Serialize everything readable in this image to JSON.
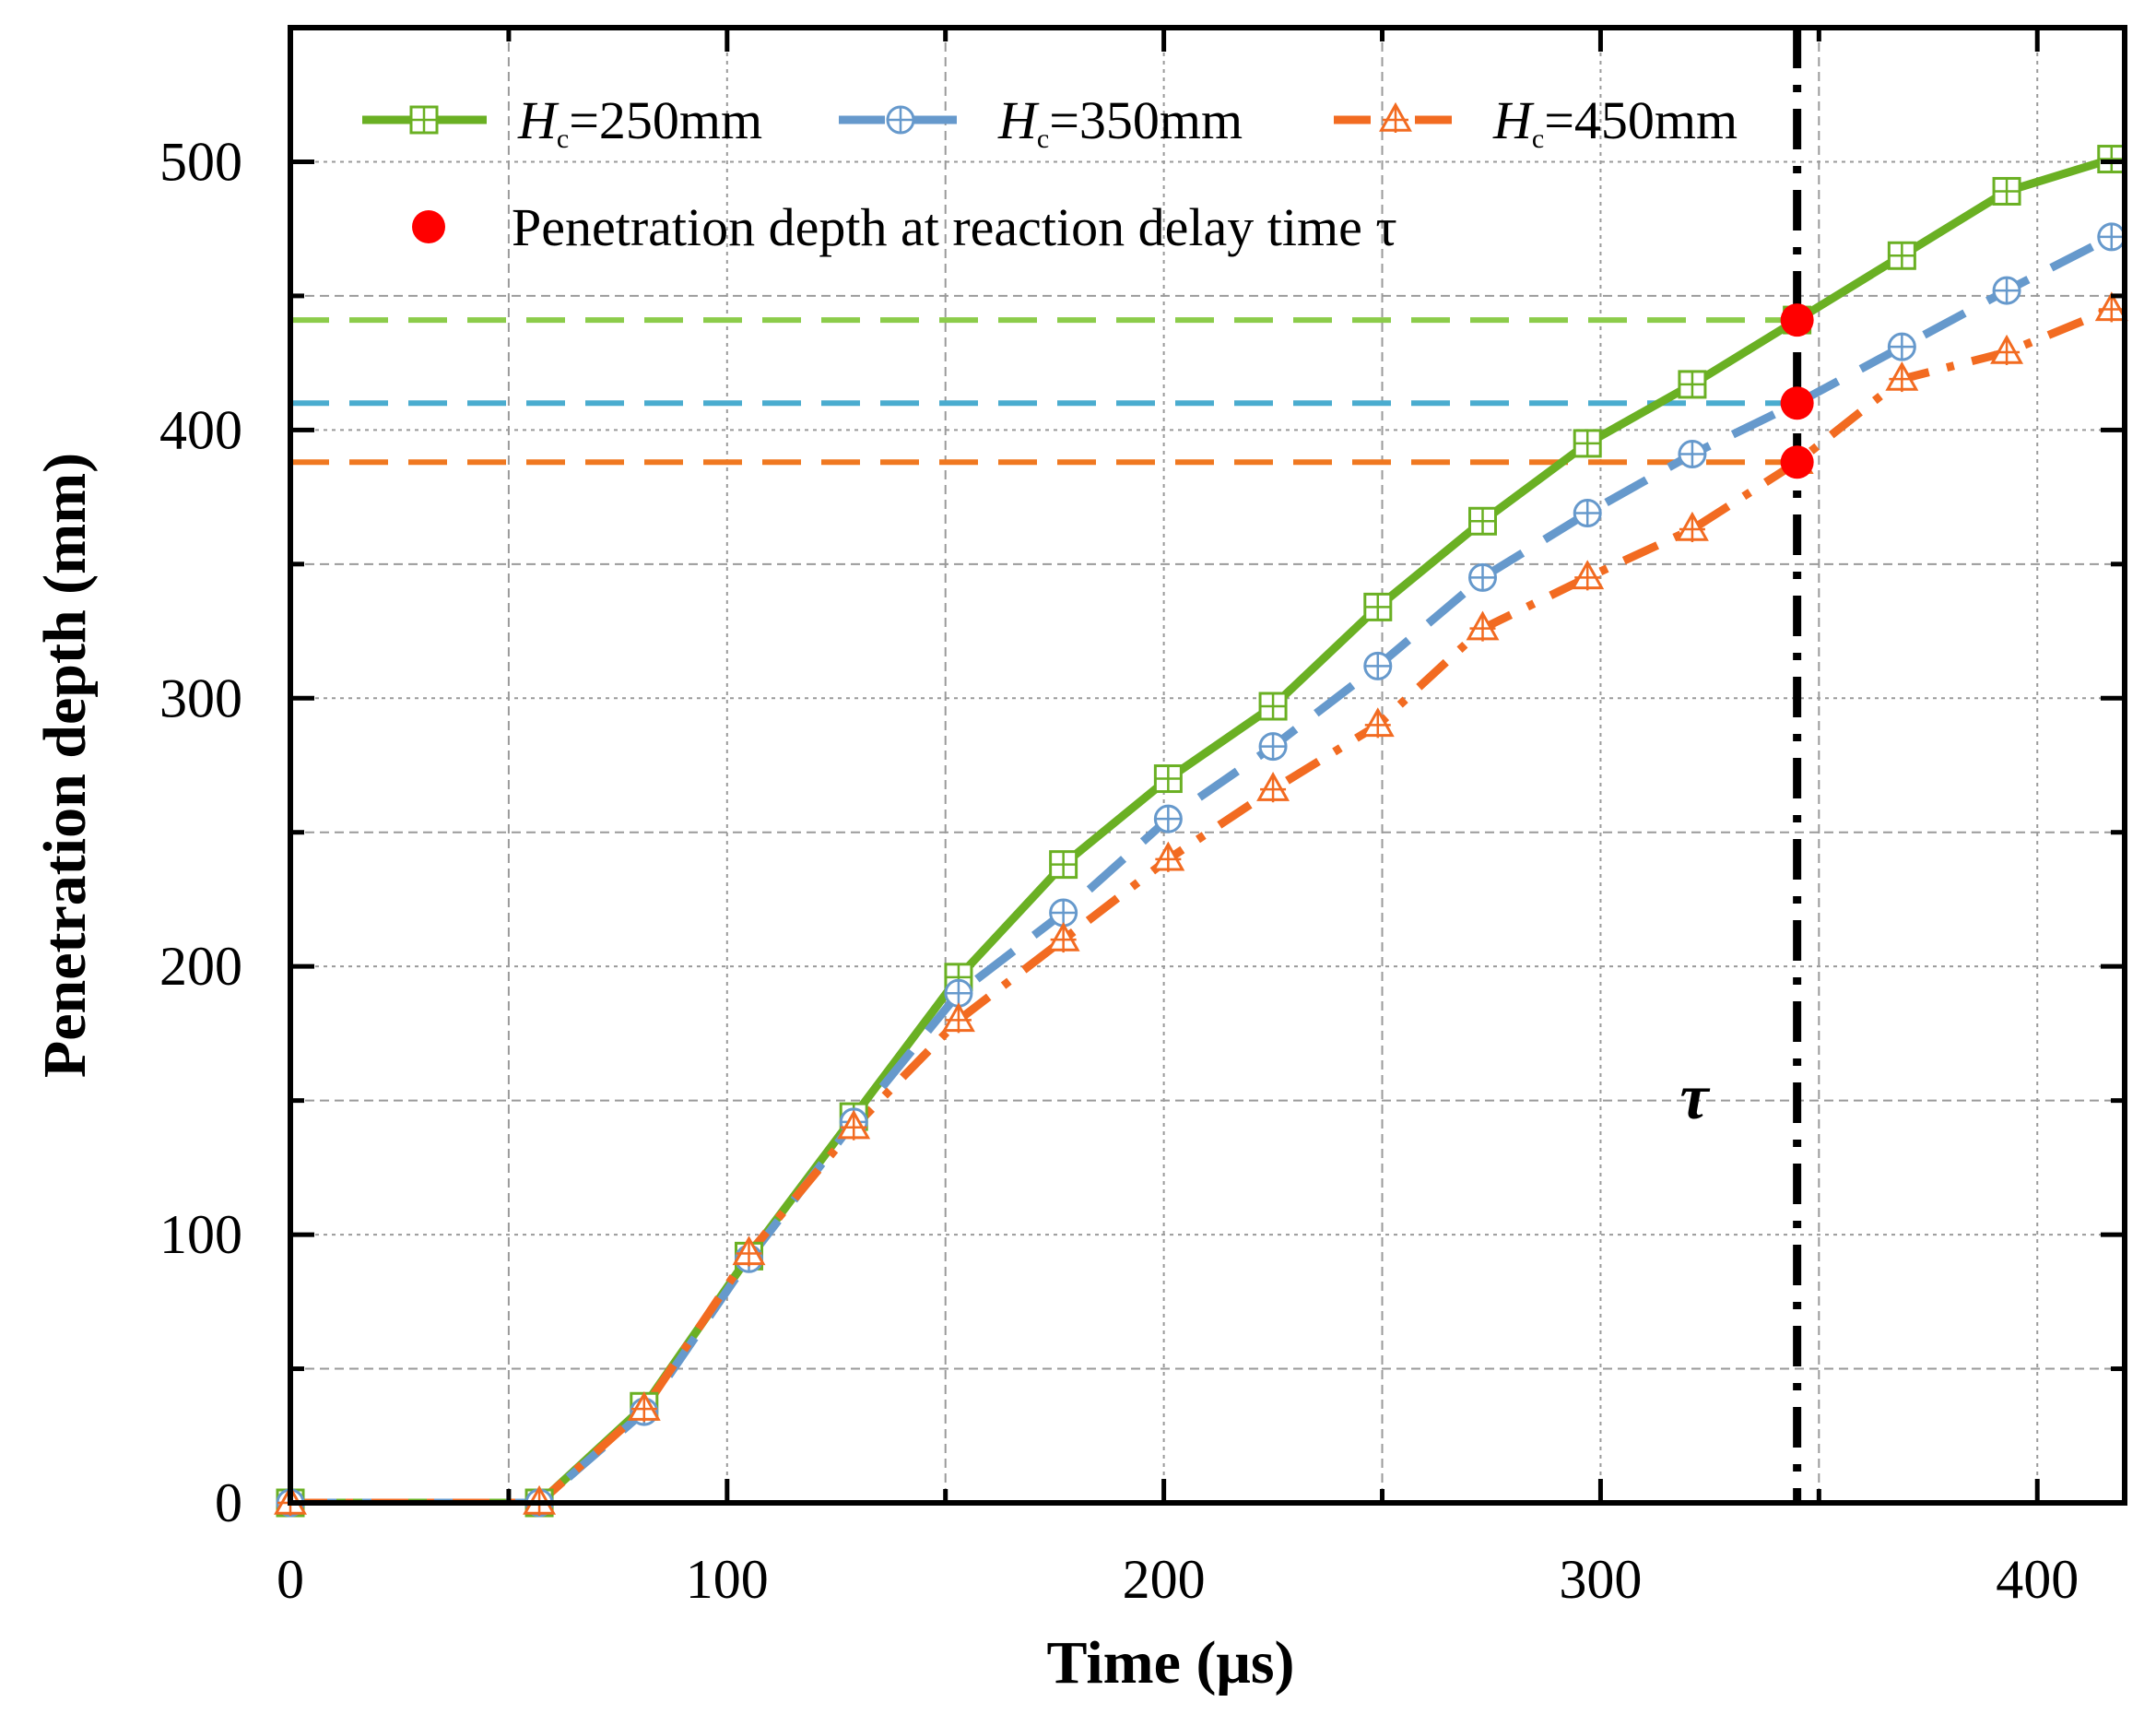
{
  "chart_data": {
    "type": "line",
    "title": "",
    "xlabel": "Time (μs)",
    "ylabel": "Penetration depth (mm)",
    "xlim": [
      0,
      420
    ],
    "ylim": [
      0,
      550
    ],
    "xticks": [
      "0",
      "100",
      "200",
      "300",
      "400"
    ],
    "yticks": [
      "0",
      "100",
      "200",
      "300",
      "400",
      "500"
    ],
    "grid": true,
    "legend_position": "top",
    "series": [
      {
        "name": "Hc=250mm",
        "label_var": "H",
        "label_sub": "c",
        "label_rest": "=250mm",
        "color": "#6ab023",
        "marker": "square-plus",
        "dash": "solid",
        "x": [
          0,
          57,
          81,
          105,
          129,
          153,
          177,
          201,
          225,
          249,
          273,
          297,
          321,
          345,
          369,
          393,
          417
        ],
        "y": [
          0,
          0,
          36,
          92,
          144,
          196,
          238,
          270,
          297,
          334,
          366,
          395,
          417,
          441,
          465,
          489,
          501
        ]
      },
      {
        "name": "Hc=350mm",
        "label_var": "H",
        "label_sub": "c",
        "label_rest": "=350mm",
        "color": "#6699cc",
        "marker": "circle-plus",
        "dash": "dashed",
        "x": [
          0,
          57,
          81,
          105,
          129,
          153,
          177,
          201,
          225,
          249,
          273,
          297,
          321,
          345,
          369,
          393,
          417
        ],
        "y": [
          0,
          0,
          34,
          91,
          142,
          190,
          220,
          255,
          282,
          312,
          345,
          369,
          391,
          410,
          431,
          452,
          472
        ]
      },
      {
        "name": "Hc=450mm",
        "label_var": "H",
        "label_sub": "c",
        "label_rest": "=450mm",
        "color": "#f26b21",
        "marker": "triangle-plus",
        "dash": "dash-dot",
        "x": [
          0,
          57,
          81,
          105,
          129,
          153,
          177,
          201,
          225,
          249,
          273,
          297,
          321,
          345,
          369,
          393,
          417
        ],
        "y": [
          0,
          0,
          35,
          93,
          140,
          180,
          210,
          240,
          266,
          290,
          326,
          345,
          363,
          388,
          419,
          429,
          445
        ]
      }
    ],
    "reaction_delay": {
      "tau": 345,
      "label": "τ",
      "points": [
        441,
        410,
        388
      ],
      "point_color": "#ff0000",
      "reference_lines": [
        {
          "y": 441,
          "color": "#8ccc4a"
        },
        {
          "y": 410,
          "color": "#4aaccf"
        },
        {
          "y": 388,
          "color": "#f07820"
        }
      ],
      "legend_label": "Penetration depth at reaction delay time τ"
    }
  }
}
